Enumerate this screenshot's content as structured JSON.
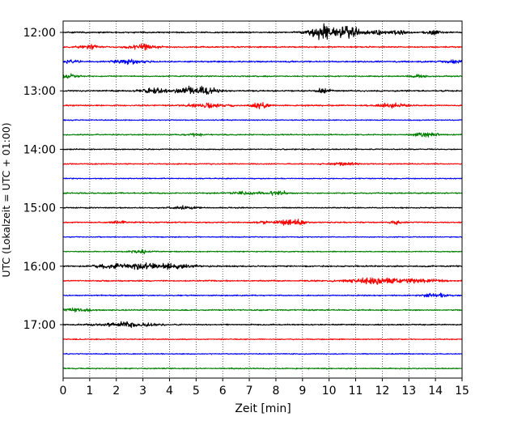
{
  "chart_data": {
    "type": "line",
    "title": "",
    "xlabel": "Zeit  [min]",
    "ylabel": "UTC (Lokalzeit = UTC + 01:00)",
    "xlim": [
      0,
      15
    ],
    "x_ticks": [
      "0",
      "1",
      "2",
      "3",
      "4",
      "5",
      "6",
      "7",
      "8",
      "9",
      "10",
      "11",
      "12",
      "13",
      "14",
      "15"
    ],
    "y_ticks": [
      "12:00",
      "13:00",
      "14:00",
      "15:00",
      "16:00",
      "17:00"
    ],
    "grid": "vertical dotted",
    "trace_interval_minutes": 15,
    "trace_colors": [
      "#000000",
      "#ff0000",
      "#0000ff",
      "#008000"
    ],
    "series": [
      {
        "start": "12:00",
        "color": "black",
        "noise": 0.55,
        "bursts": [
          [
            9.7,
            0.5,
            4.5
          ],
          [
            10.6,
            0.6,
            5.5
          ],
          [
            11.8,
            0.3,
            1.8
          ],
          [
            12.6,
            0.3,
            1.6
          ],
          [
            13.9,
            0.25,
            1.8
          ]
        ]
      },
      {
        "start": "12:15",
        "color": "red",
        "noise": 0.55,
        "bursts": [
          [
            3.0,
            0.5,
            2.2
          ],
          [
            1.0,
            0.4,
            1.2
          ]
        ]
      },
      {
        "start": "12:30",
        "color": "blue",
        "noise": 0.6,
        "bursts": [
          [
            2.4,
            0.5,
            1.8
          ],
          [
            0.3,
            0.3,
            1.2
          ],
          [
            14.8,
            0.4,
            1.5
          ]
        ]
      },
      {
        "start": "12:45",
        "color": "green",
        "noise": 0.5,
        "bursts": [
          [
            0.2,
            0.4,
            1.8
          ],
          [
            13.3,
            0.3,
            1.2
          ]
        ]
      },
      {
        "start": "13:00",
        "color": "black",
        "noise": 0.6,
        "bursts": [
          [
            4.8,
            0.6,
            3.0
          ],
          [
            3.4,
            0.5,
            1.8
          ],
          [
            9.8,
            0.2,
            2.6
          ],
          [
            5.5,
            0.4,
            1.5
          ]
        ]
      },
      {
        "start": "13:15",
        "color": "red",
        "noise": 0.5,
        "bursts": [
          [
            5.4,
            0.8,
            1.6
          ],
          [
            7.4,
            0.3,
            2.2
          ],
          [
            12.4,
            0.6,
            1.6
          ]
        ]
      },
      {
        "start": "13:30",
        "color": "blue",
        "noise": 0.4,
        "bursts": []
      },
      {
        "start": "13:45",
        "color": "green",
        "noise": 0.45,
        "bursts": [
          [
            13.6,
            0.4,
            2.5
          ],
          [
            5.0,
            0.3,
            1.0
          ]
        ]
      },
      {
        "start": "14:00",
        "color": "black",
        "noise": 0.45,
        "bursts": []
      },
      {
        "start": "14:15",
        "color": "red",
        "noise": 0.45,
        "bursts": [
          [
            10.5,
            0.5,
            1.1
          ]
        ]
      },
      {
        "start": "14:30",
        "color": "blue",
        "noise": 0.4,
        "bursts": []
      },
      {
        "start": "14:45",
        "color": "green",
        "noise": 0.5,
        "bursts": [
          [
            8.1,
            0.3,
            2.2
          ],
          [
            7.0,
            0.6,
            1.2
          ]
        ]
      },
      {
        "start": "15:00",
        "color": "black",
        "noise": 0.45,
        "bursts": [
          [
            4.5,
            0.5,
            1.0
          ]
        ]
      },
      {
        "start": "15:15",
        "color": "red",
        "noise": 0.5,
        "bursts": [
          [
            8.6,
            0.5,
            2.2
          ],
          [
            7.5,
            0.2,
            1.8
          ],
          [
            12.5,
            0.2,
            2.0
          ],
          [
            2.2,
            0.3,
            1.0
          ]
        ]
      },
      {
        "start": "15:30",
        "color": "blue",
        "noise": 0.4,
        "bursts": []
      },
      {
        "start": "15:45",
        "color": "green",
        "noise": 0.4,
        "bursts": [
          [
            2.9,
            0.4,
            1.2
          ]
        ]
      },
      {
        "start": "16:00",
        "color": "black",
        "noise": 0.55,
        "bursts": [
          [
            2.0,
            0.7,
            2.0
          ],
          [
            4.0,
            0.8,
            1.8
          ],
          [
            3.0,
            0.5,
            1.6
          ]
        ]
      },
      {
        "start": "16:15",
        "color": "red",
        "noise": 0.5,
        "bursts": [
          [
            12.4,
            1.6,
            1.8
          ],
          [
            11.4,
            0.5,
            1.3
          ]
        ]
      },
      {
        "start": "16:30",
        "color": "blue",
        "noise": 0.45,
        "bursts": [
          [
            14.0,
            0.6,
            1.3
          ]
        ]
      },
      {
        "start": "16:45",
        "color": "green",
        "noise": 0.5,
        "bursts": [
          [
            0.5,
            0.5,
            1.8
          ]
        ]
      },
      {
        "start": "17:00",
        "color": "black",
        "noise": 0.5,
        "bursts": [
          [
            2.4,
            1.0,
            1.8
          ]
        ]
      },
      {
        "start": "17:15",
        "color": "red",
        "noise": 0.4,
        "bursts": []
      },
      {
        "start": "17:30",
        "color": "blue",
        "noise": 0.4,
        "bursts": []
      },
      {
        "start": "17:45",
        "color": "green",
        "noise": 0.45,
        "bursts": []
      }
    ]
  }
}
